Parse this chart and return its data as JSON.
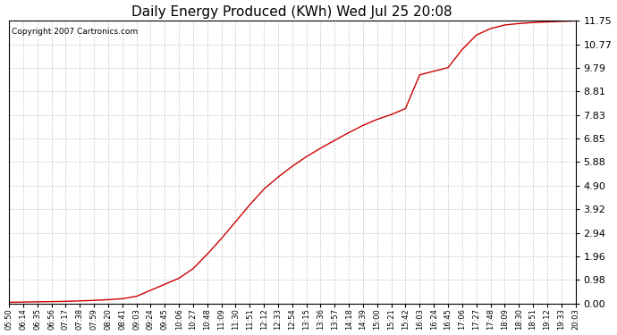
{
  "title": "Daily Energy Produced (KWh) Wed Jul 25 20:08",
  "copyright": "Copyright 2007 Cartronics.com",
  "line_color": "#cc0000",
  "background_color": "#ffffff",
  "plot_bg_color": "#ffffff",
  "grid_color": "#bbbbbb",
  "yticks": [
    0.0,
    0.98,
    1.96,
    2.94,
    3.92,
    4.9,
    5.88,
    6.85,
    7.83,
    8.81,
    9.79,
    10.77,
    11.75
  ],
  "ymin": 0.0,
  "ymax": 11.75,
  "x_labels": [
    "05:50",
    "06:14",
    "06:35",
    "06:56",
    "07:17",
    "07:38",
    "07:59",
    "08:20",
    "08:41",
    "09:03",
    "09:24",
    "09:45",
    "10:06",
    "10:27",
    "10:48",
    "11:09",
    "11:30",
    "11:51",
    "12:12",
    "12:33",
    "12:54",
    "13:15",
    "13:36",
    "13:57",
    "14:18",
    "14:39",
    "15:00",
    "15:21",
    "15:42",
    "16:03",
    "16:24",
    "16:45",
    "17:06",
    "17:27",
    "17:48",
    "18:09",
    "18:30",
    "18:51",
    "19:12",
    "19:33",
    "20:03"
  ],
  "y_values": [
    0.05,
    0.06,
    0.07,
    0.08,
    0.09,
    0.11,
    0.13,
    0.16,
    0.2,
    0.3,
    0.55,
    0.8,
    1.05,
    1.45,
    2.05,
    2.7,
    3.4,
    4.1,
    4.75,
    5.25,
    5.7,
    6.1,
    6.45,
    6.78,
    7.1,
    7.4,
    7.65,
    7.85,
    8.1,
    9.5,
    9.65,
    9.8,
    10.55,
    11.15,
    11.42,
    11.57,
    11.63,
    11.67,
    11.7,
    11.72,
    11.74
  ]
}
